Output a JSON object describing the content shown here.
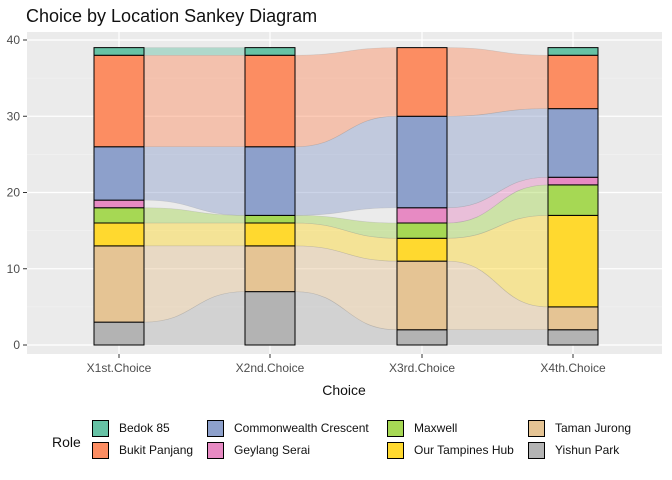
{
  "chart_data": {
    "type": "sankey",
    "title": "Choice by Location Sankey Diagram",
    "xlabel": "Choice",
    "ylabel": "",
    "ylim": [
      0,
      40
    ],
    "y_ticks": [
      0,
      10,
      20,
      30,
      40
    ],
    "axes": [
      "X1st.Choice",
      "X2nd.Choice",
      "X3rd.Choice",
      "X4th.Choice"
    ],
    "legend_title": "Role",
    "legend_position": "bottom",
    "categories": [
      "Bedok 85",
      "Bukit Panjang",
      "Commonwealth Crescent",
      "Geylang Serai",
      "Maxwell",
      "Our Tampines Hub",
      "Taman Jurong",
      "Yishun Park"
    ],
    "colors": {
      "Bedok 85": "#66c2a5",
      "Bukit Panjang": "#fc8d62",
      "Commonwealth Crescent": "#8da0cb",
      "Geylang Serai": "#e78ac3",
      "Maxwell": "#a6d854",
      "Our Tampines Hub": "#ffd92f",
      "Taman Jurong": "#e5c494",
      "Yishun Park": "#b3b3b3"
    },
    "stack_order_bottom_to_top": [
      "Yishun Park",
      "Taman Jurong",
      "Our Tampines Hub",
      "Maxwell",
      "Geylang Serai",
      "Commonwealth Crescent",
      "Bukit Panjang",
      "Bedok 85"
    ],
    "counts": {
      "X1st.Choice": {
        "Yishun Park": 3,
        "Taman Jurong": 10,
        "Our Tampines Hub": 3,
        "Maxwell": 2,
        "Geylang Serai": 1,
        "Commonwealth Crescent": 7,
        "Bukit Panjang": 12,
        "Bedok 85": 1
      },
      "X2nd.Choice": {
        "Yishun Park": 7,
        "Taman Jurong": 6,
        "Our Tampines Hub": 3,
        "Maxwell": 1,
        "Geylang Serai": 0,
        "Commonwealth Crescent": 9,
        "Bukit Panjang": 12,
        "Bedok 85": 1
      },
      "X3rd.Choice": {
        "Yishun Park": 2,
        "Taman Jurong": 9,
        "Our Tampines Hub": 3,
        "Maxwell": 2,
        "Geylang Serai": 2,
        "Commonwealth Crescent": 12,
        "Bukit Panjang": 9,
        "Bedok 85": 0
      },
      "X4th.Choice": {
        "Yishun Park": 2,
        "Taman Jurong": 3,
        "Our Tampines Hub": 12,
        "Maxwell": 4,
        "Geylang Serai": 1,
        "Commonwealth Crescent": 9,
        "Bukit Panjang": 7,
        "Bedok 85": 1
      }
    },
    "grid": true
  }
}
